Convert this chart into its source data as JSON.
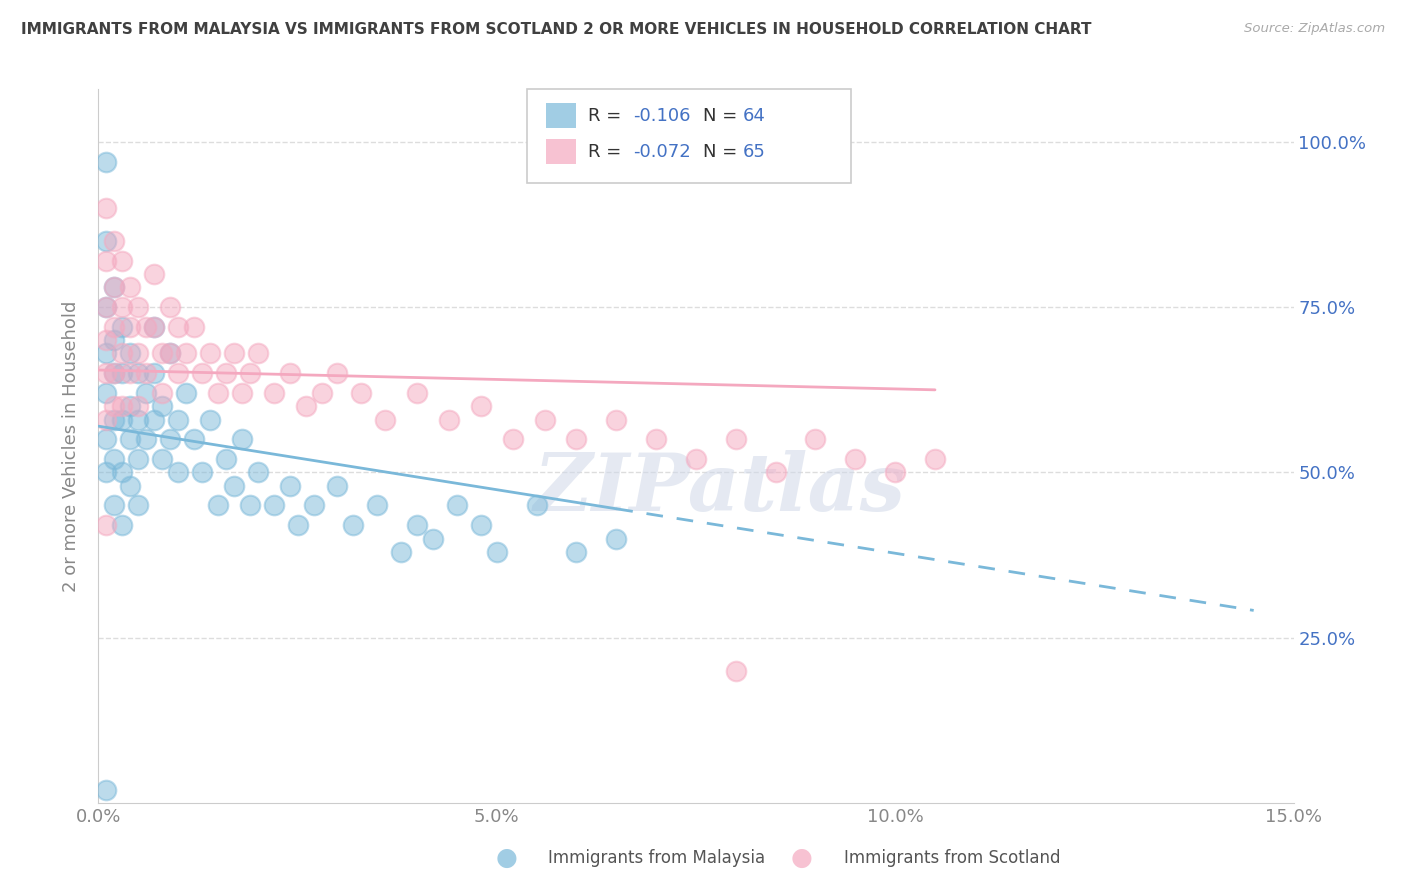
{
  "title": "IMMIGRANTS FROM MALAYSIA VS IMMIGRANTS FROM SCOTLAND 2 OR MORE VEHICLES IN HOUSEHOLD CORRELATION CHART",
  "source": "Source: ZipAtlas.com",
  "ylabel": "2 or more Vehicles in Household",
  "watermark": "ZIPatlas",
  "xlim": [
    0.0,
    0.15
  ],
  "ylim": [
    0.0,
    1.08
  ],
  "xtick_labels": [
    "0.0%",
    "5.0%",
    "10.0%",
    "15.0%"
  ],
  "xtick_vals": [
    0.0,
    0.05,
    0.1,
    0.15
  ],
  "ytick_labels": [
    "25.0%",
    "50.0%",
    "75.0%",
    "100.0%"
  ],
  "ytick_vals": [
    0.25,
    0.5,
    0.75,
    1.0
  ],
  "malaysia_color": "#7ab8d9",
  "scotland_color": "#f4a8bf",
  "malaysia_R": -0.106,
  "malaysia_N": 64,
  "scotland_R": -0.072,
  "scotland_N": 65,
  "malaysia_scatter_x": [
    0.001,
    0.001,
    0.001,
    0.001,
    0.001,
    0.001,
    0.001,
    0.002,
    0.002,
    0.002,
    0.002,
    0.002,
    0.002,
    0.003,
    0.003,
    0.003,
    0.003,
    0.003,
    0.004,
    0.004,
    0.004,
    0.004,
    0.005,
    0.005,
    0.005,
    0.005,
    0.006,
    0.006,
    0.007,
    0.007,
    0.007,
    0.008,
    0.008,
    0.009,
    0.009,
    0.01,
    0.01,
    0.011,
    0.012,
    0.013,
    0.014,
    0.015,
    0.016,
    0.017,
    0.018,
    0.019,
    0.02,
    0.022,
    0.024,
    0.025,
    0.027,
    0.03,
    0.032,
    0.035,
    0.038,
    0.04,
    0.042,
    0.045,
    0.048,
    0.05,
    0.055,
    0.06,
    0.065,
    0.001
  ],
  "malaysia_scatter_y": [
    0.97,
    0.85,
    0.75,
    0.68,
    0.62,
    0.55,
    0.5,
    0.78,
    0.7,
    0.65,
    0.58,
    0.52,
    0.45,
    0.72,
    0.65,
    0.58,
    0.5,
    0.42,
    0.68,
    0.6,
    0.55,
    0.48,
    0.65,
    0.58,
    0.52,
    0.45,
    0.62,
    0.55,
    0.72,
    0.65,
    0.58,
    0.6,
    0.52,
    0.68,
    0.55,
    0.58,
    0.5,
    0.62,
    0.55,
    0.5,
    0.58,
    0.45,
    0.52,
    0.48,
    0.55,
    0.45,
    0.5,
    0.45,
    0.48,
    0.42,
    0.45,
    0.48,
    0.42,
    0.45,
    0.38,
    0.42,
    0.4,
    0.45,
    0.42,
    0.38,
    0.45,
    0.38,
    0.4,
    0.02
  ],
  "scotland_scatter_x": [
    0.001,
    0.001,
    0.001,
    0.001,
    0.001,
    0.001,
    0.002,
    0.002,
    0.002,
    0.002,
    0.002,
    0.003,
    0.003,
    0.003,
    0.003,
    0.004,
    0.004,
    0.004,
    0.005,
    0.005,
    0.005,
    0.006,
    0.006,
    0.007,
    0.007,
    0.008,
    0.008,
    0.009,
    0.009,
    0.01,
    0.01,
    0.011,
    0.012,
    0.013,
    0.014,
    0.015,
    0.016,
    0.017,
    0.018,
    0.019,
    0.02,
    0.022,
    0.024,
    0.026,
    0.028,
    0.03,
    0.033,
    0.036,
    0.04,
    0.044,
    0.048,
    0.052,
    0.056,
    0.06,
    0.065,
    0.07,
    0.075,
    0.08,
    0.085,
    0.09,
    0.095,
    0.1,
    0.105,
    0.08,
    0.001
  ],
  "scotland_scatter_y": [
    0.9,
    0.82,
    0.75,
    0.7,
    0.65,
    0.58,
    0.85,
    0.78,
    0.72,
    0.65,
    0.6,
    0.82,
    0.75,
    0.68,
    0.6,
    0.78,
    0.72,
    0.65,
    0.75,
    0.68,
    0.6,
    0.72,
    0.65,
    0.8,
    0.72,
    0.68,
    0.62,
    0.75,
    0.68,
    0.72,
    0.65,
    0.68,
    0.72,
    0.65,
    0.68,
    0.62,
    0.65,
    0.68,
    0.62,
    0.65,
    0.68,
    0.62,
    0.65,
    0.6,
    0.62,
    0.65,
    0.62,
    0.58,
    0.62,
    0.58,
    0.6,
    0.55,
    0.58,
    0.55,
    0.58,
    0.55,
    0.52,
    0.55,
    0.5,
    0.55,
    0.52,
    0.5,
    0.52,
    0.2,
    0.42
  ],
  "background_color": "#ffffff",
  "grid_color": "#dddddd",
  "title_color": "#404040",
  "axis_label_color": "#888888",
  "right_tick_color": "#4472c4",
  "legend_number_color": "#4472c4",
  "legend_text_color": "#333333"
}
